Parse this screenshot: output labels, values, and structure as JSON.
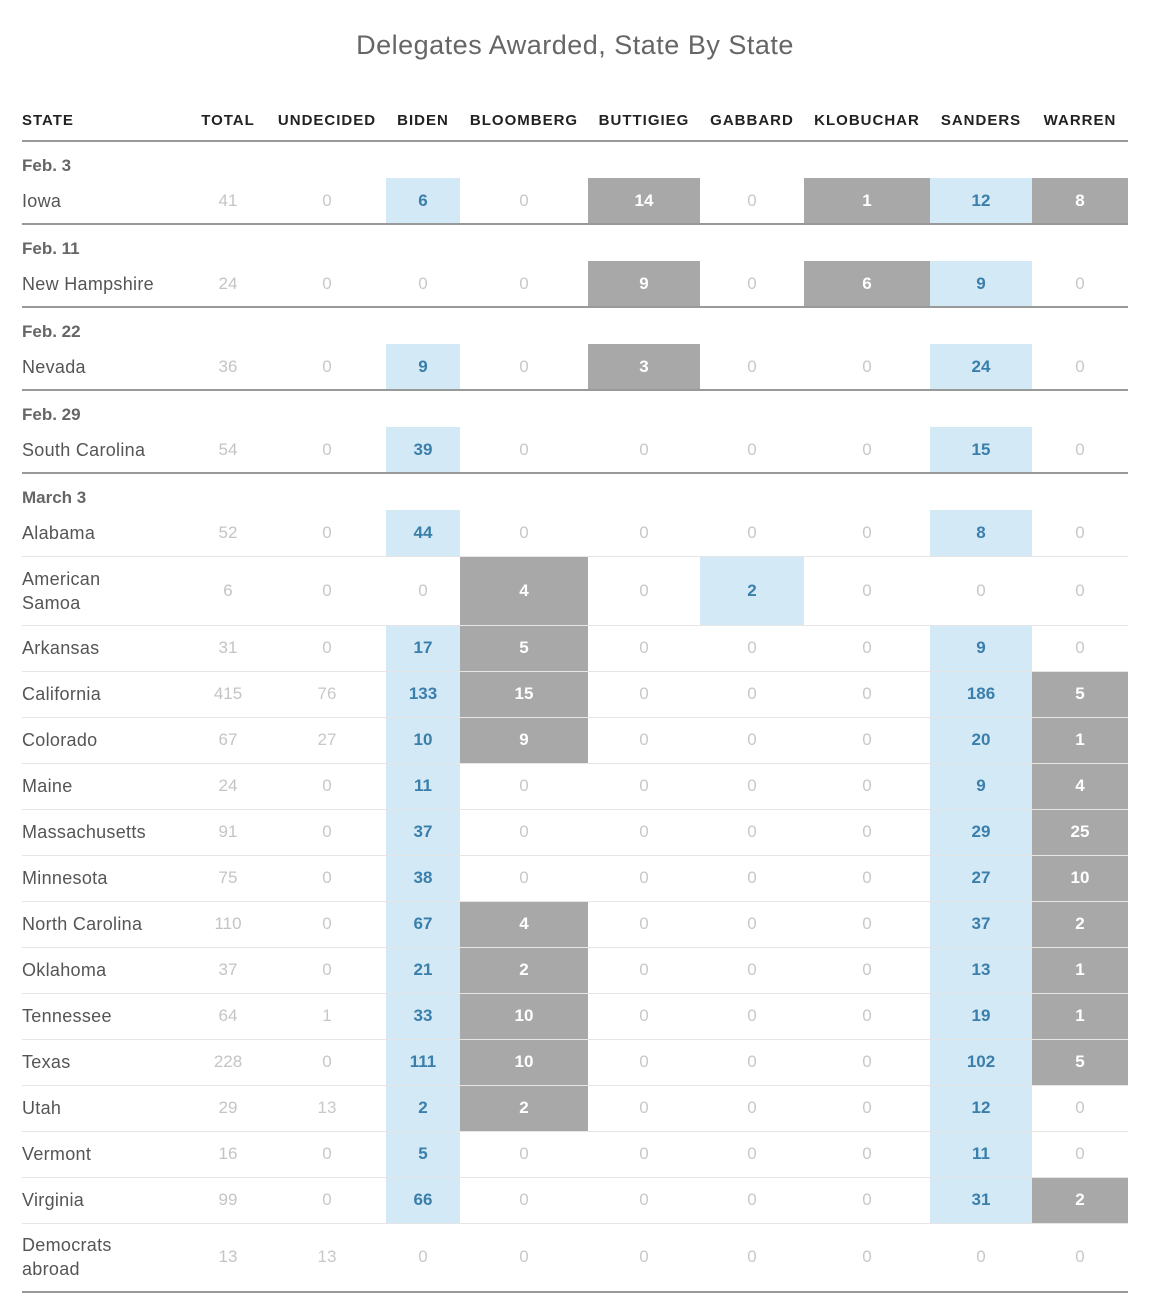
{
  "title": "Delegates Awarded, State By State",
  "colors": {
    "winner_bg": "#d3e9f5",
    "winner_text": "#3a7fab",
    "awarded_bg": "#a8a8a8",
    "zero_text": "#c8c8c8"
  },
  "chart_data": {
    "type": "table",
    "title": "Delegates Awarded, State By State",
    "columns": [
      "STATE",
      "TOTAL",
      "UNDECIDED",
      "BIDEN",
      "BLOOMBERG",
      "BUTTIGIEG",
      "GABBARD",
      "KLOBUCHAR",
      "SANDERS",
      "WARREN"
    ],
    "groups": [
      {
        "date": "Feb. 3",
        "rows": [
          {
            "state": "Iowa",
            "total": 41,
            "undecided": 0,
            "values": [
              6,
              0,
              14,
              0,
              1,
              12,
              8
            ],
            "styles": [
              "w",
              "",
              "g",
              "",
              "g",
              "w",
              "g"
            ]
          }
        ]
      },
      {
        "date": "Feb. 11",
        "rows": [
          {
            "state": "New Hampshire",
            "total": 24,
            "undecided": 0,
            "values": [
              0,
              0,
              9,
              0,
              6,
              9,
              0
            ],
            "styles": [
              "",
              "",
              "g",
              "",
              "g",
              "w",
              ""
            ]
          }
        ]
      },
      {
        "date": "Feb. 22",
        "rows": [
          {
            "state": "Nevada",
            "total": 36,
            "undecided": 0,
            "values": [
              9,
              0,
              3,
              0,
              0,
              24,
              0
            ],
            "styles": [
              "w",
              "",
              "g",
              "",
              "",
              "w",
              ""
            ]
          }
        ]
      },
      {
        "date": "Feb. 29",
        "rows": [
          {
            "state": "South Carolina",
            "total": 54,
            "undecided": 0,
            "values": [
              39,
              0,
              0,
              0,
              0,
              15,
              0
            ],
            "styles": [
              "w",
              "",
              "",
              "",
              "",
              "w",
              ""
            ]
          }
        ]
      },
      {
        "date": "March 3",
        "rows": [
          {
            "state": "Alabama",
            "total": 52,
            "undecided": 0,
            "values": [
              44,
              0,
              0,
              0,
              0,
              8,
              0
            ],
            "styles": [
              "w",
              "",
              "",
              "",
              "",
              "w",
              ""
            ]
          },
          {
            "state": "American Samoa",
            "total": 6,
            "undecided": 0,
            "values": [
              0,
              4,
              0,
              2,
              0,
              0,
              0
            ],
            "styles": [
              "",
              "g",
              "",
              "w",
              "",
              "",
              ""
            ],
            "tall": true
          },
          {
            "state": "Arkansas",
            "total": 31,
            "undecided": 0,
            "values": [
              17,
              5,
              0,
              0,
              0,
              9,
              0
            ],
            "styles": [
              "w",
              "g",
              "",
              "",
              "",
              "w",
              ""
            ]
          },
          {
            "state": "California",
            "total": 415,
            "undecided": 76,
            "values": [
              133,
              15,
              0,
              0,
              0,
              186,
              5
            ],
            "styles": [
              "w",
              "g",
              "",
              "",
              "",
              "w",
              "g"
            ]
          },
          {
            "state": "Colorado",
            "total": 67,
            "undecided": 27,
            "values": [
              10,
              9,
              0,
              0,
              0,
              20,
              1
            ],
            "styles": [
              "w",
              "g",
              "",
              "",
              "",
              "w",
              "g"
            ]
          },
          {
            "state": "Maine",
            "total": 24,
            "undecided": 0,
            "values": [
              11,
              0,
              0,
              0,
              0,
              9,
              4
            ],
            "styles": [
              "w",
              "",
              "",
              "",
              "",
              "w",
              "g"
            ]
          },
          {
            "state": "Massachusetts",
            "total": 91,
            "undecided": 0,
            "values": [
              37,
              0,
              0,
              0,
              0,
              29,
              25
            ],
            "styles": [
              "w",
              "",
              "",
              "",
              "",
              "w",
              "g"
            ]
          },
          {
            "state": "Minnesota",
            "total": 75,
            "undecided": 0,
            "values": [
              38,
              0,
              0,
              0,
              0,
              27,
              10
            ],
            "styles": [
              "w",
              "",
              "",
              "",
              "",
              "w",
              "g"
            ]
          },
          {
            "state": "North Carolina",
            "total": 110,
            "undecided": 0,
            "values": [
              67,
              4,
              0,
              0,
              0,
              37,
              2
            ],
            "styles": [
              "w",
              "g",
              "",
              "",
              "",
              "w",
              "g"
            ]
          },
          {
            "state": "Oklahoma",
            "total": 37,
            "undecided": 0,
            "values": [
              21,
              2,
              0,
              0,
              0,
              13,
              1
            ],
            "styles": [
              "w",
              "g",
              "",
              "",
              "",
              "w",
              "g"
            ]
          },
          {
            "state": "Tennessee",
            "total": 64,
            "undecided": 1,
            "values": [
              33,
              10,
              0,
              0,
              0,
              19,
              1
            ],
            "styles": [
              "w",
              "g",
              "",
              "",
              "",
              "w",
              "g"
            ]
          },
          {
            "state": "Texas",
            "total": 228,
            "undecided": 0,
            "values": [
              111,
              10,
              0,
              0,
              0,
              102,
              5
            ],
            "styles": [
              "w",
              "g",
              "",
              "",
              "",
              "w",
              "g"
            ]
          },
          {
            "state": "Utah",
            "total": 29,
            "undecided": 13,
            "values": [
              2,
              2,
              0,
              0,
              0,
              12,
              0
            ],
            "styles": [
              "w",
              "g",
              "",
              "",
              "",
              "w",
              ""
            ]
          },
          {
            "state": "Vermont",
            "total": 16,
            "undecided": 0,
            "values": [
              5,
              0,
              0,
              0,
              0,
              11,
              0
            ],
            "styles": [
              "w",
              "",
              "",
              "",
              "",
              "w",
              ""
            ]
          },
          {
            "state": "Virginia",
            "total": 99,
            "undecided": 0,
            "values": [
              66,
              0,
              0,
              0,
              0,
              31,
              2
            ],
            "styles": [
              "w",
              "",
              "",
              "",
              "",
              "w",
              "g"
            ]
          },
          {
            "state": "Democrats abroad",
            "total": 13,
            "undecided": 13,
            "values": [
              0,
              0,
              0,
              0,
              0,
              0,
              0
            ],
            "styles": [
              "",
              "",
              "",
              "",
              "",
              "",
              ""
            ],
            "tall": true
          }
        ]
      }
    ]
  }
}
